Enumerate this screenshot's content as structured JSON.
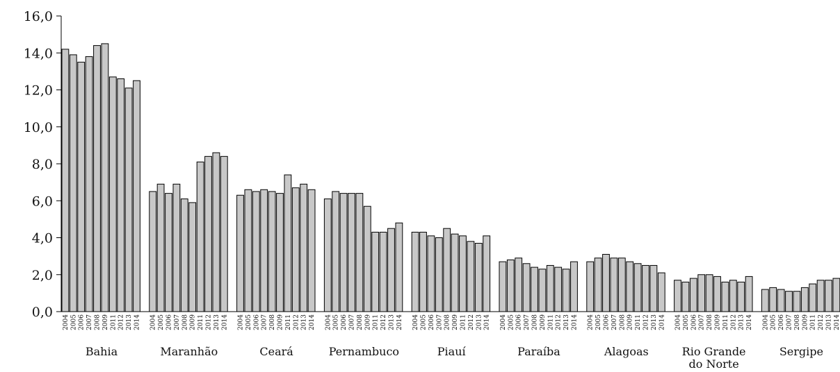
{
  "chart_data": {
    "type": "bar",
    "title": "",
    "xlabel": "",
    "ylabel": "",
    "ylim": [
      0,
      16
    ],
    "yticks": [
      "0,0",
      "2,0",
      "4,0",
      "6,0",
      "8,0",
      "10,0",
      "12,0",
      "14,0",
      "16,0"
    ],
    "grid": false,
    "bar_color": "#c8c8c8",
    "x": [
      "2004",
      "2005",
      "2006",
      "2007",
      "2008",
      "2009",
      "2011",
      "2012",
      "2013",
      "2014"
    ],
    "groups": [
      {
        "label": [
          "Bahia"
        ],
        "values": [
          14.2,
          13.9,
          13.5,
          13.8,
          14.4,
          14.5,
          12.7,
          12.6,
          12.1,
          12.5
        ]
      },
      {
        "label": [
          "Maranhão"
        ],
        "values": [
          6.5,
          6.9,
          6.4,
          6.9,
          6.1,
          5.9,
          8.1,
          8.4,
          8.6,
          8.4
        ]
      },
      {
        "label": [
          "Ceará"
        ],
        "values": [
          6.3,
          6.6,
          6.5,
          6.6,
          6.5,
          6.4,
          7.4,
          6.7,
          6.9,
          6.6
        ]
      },
      {
        "label": [
          "Pernambuco"
        ],
        "values": [
          6.1,
          6.5,
          6.4,
          6.4,
          6.4,
          5.7,
          4.3,
          4.3,
          4.5,
          4.8
        ]
      },
      {
        "label": [
          "Piauí"
        ],
        "values": [
          4.3,
          4.3,
          4.1,
          4.0,
          4.5,
          4.2,
          4.1,
          3.8,
          3.7,
          4.1
        ]
      },
      {
        "label": [
          "Paraíba"
        ],
        "values": [
          2.7,
          2.8,
          2.9,
          2.6,
          2.4,
          2.3,
          2.5,
          2.4,
          2.3,
          2.7
        ]
      },
      {
        "label": [
          "Alagoas"
        ],
        "values": [
          2.7,
          2.9,
          3.1,
          2.9,
          2.9,
          2.7,
          2.6,
          2.5,
          2.5,
          2.1
        ]
      },
      {
        "label": [
          "Rio Grande",
          "do Norte"
        ],
        "values": [
          1.7,
          1.6,
          1.8,
          2.0,
          2.0,
          1.9,
          1.6,
          1.7,
          1.6,
          1.9
        ]
      },
      {
        "label": [
          "Sergipe"
        ],
        "values": [
          1.2,
          1.3,
          1.2,
          1.1,
          1.1,
          1.3,
          1.5,
          1.7,
          1.7,
          1.8
        ]
      }
    ]
  }
}
